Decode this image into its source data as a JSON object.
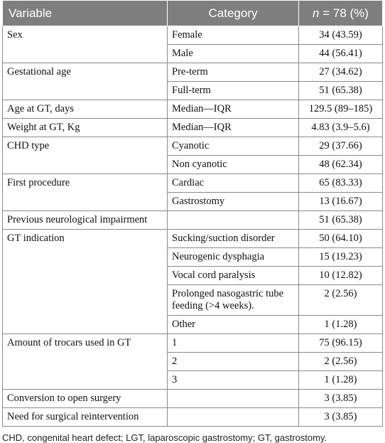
{
  "header": {
    "variable": "Variable",
    "category": "Category",
    "n_label": "n",
    "n_rest": " = 78 (%)"
  },
  "rows": [
    {
      "variable": "Sex",
      "category": "Female",
      "value": "34 (43.59)"
    },
    {
      "variable": "",
      "category": "Male",
      "value": "44 (56.41)"
    },
    {
      "variable": "Gestational age",
      "category": "Pre-term",
      "value": "27 (34.62)"
    },
    {
      "variable": "",
      "category": "Full-term",
      "value": "51 (65.38)"
    },
    {
      "variable": "Age at GT, days",
      "category": "Median—IQR",
      "value": "129.5 (89–185)"
    },
    {
      "variable": "Weight at GT, Kg",
      "category": "Median—IQR",
      "value": "4.83 (3.9–5.6)"
    },
    {
      "variable": "CHD type",
      "category": "Cyanotic",
      "value": "29 (37.66)"
    },
    {
      "variable": "",
      "category": "Non cyanotic",
      "value": "48 (62.34)"
    },
    {
      "variable": "First procedure",
      "category": "Cardiac",
      "value": "65 (83.33)"
    },
    {
      "variable": "",
      "category": "Gastrostomy",
      "value": "13 (16.67)"
    },
    {
      "variable": "Previous neurological impairment",
      "category": "",
      "value": "51 (65.38)"
    },
    {
      "variable": "GT indication",
      "category": "Sucking/suction disorder",
      "value": "50 (64.10)"
    },
    {
      "variable": "",
      "category": "Neurogenic dysphagia",
      "value": "15 (19.23)"
    },
    {
      "variable": "",
      "category": "Vocal cord paralysis",
      "value": "10 (12.82)"
    },
    {
      "variable": "",
      "category": "Prolonged nasogastric tube feeding (>4 weeks).",
      "value": "2 (2.56)"
    },
    {
      "variable": "",
      "category": "Other",
      "value": "1 (1.28)"
    },
    {
      "variable": "Amount of trocars used in GT",
      "category": "1",
      "value": "75 (96.15)"
    },
    {
      "variable": "",
      "category": "2",
      "value": "2 (2.56)"
    },
    {
      "variable": "",
      "category": "3",
      "value": "1 (1.28)"
    },
    {
      "variable": "Conversion to open surgery",
      "category": "",
      "value": "3 (3.85)"
    },
    {
      "variable": "Need for surgical reintervention",
      "category": "",
      "value": "3 (3.85)"
    }
  ],
  "footnote": "CHD, congenital heart defect; LGT, laparoscopic gastrostomy; GT, gastrostomy.",
  "colors": {
    "header_bg": "#7f7f7f",
    "border": "#8a8a8a"
  }
}
